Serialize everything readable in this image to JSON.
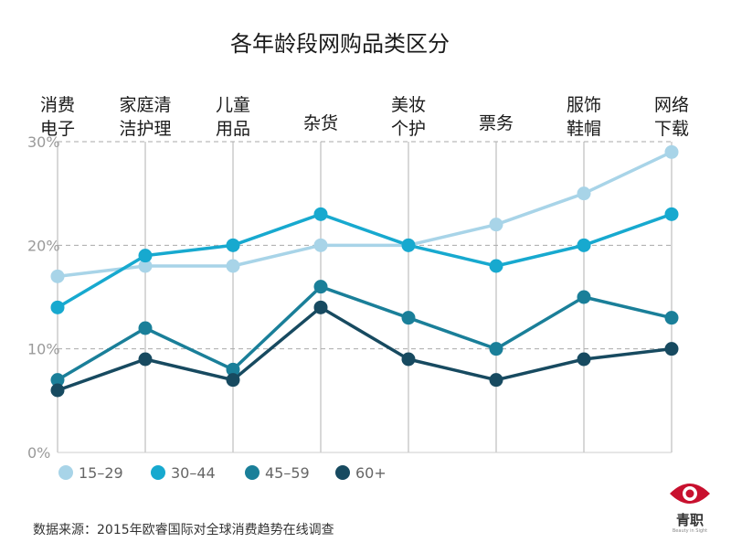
{
  "chart_data": {
    "type": "line",
    "title": "各年龄段网购品类区分",
    "categories": [
      [
        "消费",
        "电子"
      ],
      [
        "家庭清",
        "洁护理"
      ],
      [
        "儿童",
        "用品"
      ],
      [
        "杂货"
      ],
      [
        "美妆",
        "个护"
      ],
      [
        "票务"
      ],
      [
        "服饰",
        "鞋帽"
      ],
      [
        "网络",
        "下载"
      ]
    ],
    "ylim": [
      0,
      30
    ],
    "yticks": [
      0,
      10,
      20,
      30
    ],
    "ytick_labels": [
      "0%",
      "10%",
      "20%",
      "30%"
    ],
    "series": [
      {
        "name": "15–29",
        "color": "#a8d4e8",
        "values": [
          17,
          18,
          18,
          20,
          20,
          22,
          25,
          29
        ]
      },
      {
        "name": "30–44",
        "color": "#17a9cf",
        "values": [
          14,
          19,
          20,
          23,
          20,
          18,
          20,
          23
        ]
      },
      {
        "name": "45–59",
        "color": "#1a7f99",
        "values": [
          7,
          12,
          8,
          16,
          13,
          10,
          15,
          13
        ]
      },
      {
        "name": "60+",
        "color": "#174a60",
        "values": [
          6,
          9,
          7,
          14,
          9,
          7,
          9,
          10
        ]
      }
    ]
  },
  "source_note": "数据来源：2015年欧睿国际对全球消费趋势在线调查",
  "logo": {
    "name": "青职",
    "subtitle": "Beauty in Sight",
    "color": "#c8102e"
  }
}
